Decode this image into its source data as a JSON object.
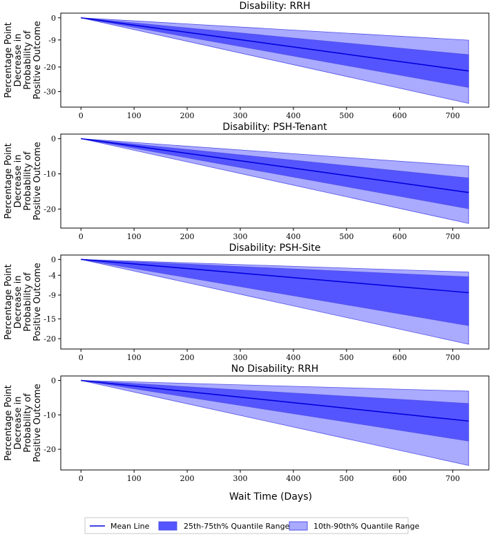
{
  "colors": {
    "mean_line": "#0000dd",
    "band_25_75": "#5555ff",
    "band_10_90": "#aaaaff",
    "band_edge": "#4f4fe6"
  },
  "xlabel": "Wait Time (Days)",
  "ylabel_lines": [
    "Percentage Point",
    "Decrease in",
    "Probability of",
    "Positive Outcome"
  ],
  "legend": {
    "mean": "Mean Line",
    "iqr": "25th-75th% Quantile Range",
    "p10_90": "10th-90th% Quantile Range"
  },
  "chart_data": [
    {
      "type": "line",
      "title": "Disability: RRH",
      "xlabel": "Wait Time (Days)",
      "ylabel": "Percentage Point Decrease in Probability of Positive Outcome",
      "x": [
        0,
        730
      ],
      "xticks": [
        0,
        100,
        200,
        300,
        400,
        500,
        600,
        700
      ],
      "xlim": [
        -38,
        768
      ],
      "ylim": [
        -36.3,
        1.9
      ],
      "yticks": [
        0,
        -9,
        -20,
        -30
      ],
      "ytick_labels": [
        "0",
        "-9",
        "-20",
        "-30"
      ],
      "series": [
        {
          "name": "Mean Line",
          "values": [
            0,
            -21.6
          ]
        },
        {
          "name": "25th percentile",
          "values": [
            0,
            -28.3
          ]
        },
        {
          "name": "75th percentile",
          "values": [
            0,
            -15.0
          ]
        },
        {
          "name": "10th percentile",
          "values": [
            0,
            -34.8
          ]
        },
        {
          "name": "90th percentile",
          "values": [
            0,
            -9.1
          ]
        }
      ]
    },
    {
      "type": "line",
      "title": "Disability: PSH-Tenant",
      "xlabel": "Wait Time (Days)",
      "ylabel": "Percentage Point Decrease in Probability of Positive Outcome",
      "x": [
        0,
        730
      ],
      "xticks": [
        0,
        100,
        200,
        300,
        400,
        500,
        600,
        700
      ],
      "xlim": [
        -38,
        768
      ],
      "ylim": [
        -25.4,
        1.3
      ],
      "yticks": [
        0,
        -10,
        -20
      ],
      "ytick_labels": [
        "0",
        "-10",
        "-20"
      ],
      "series": [
        {
          "name": "Mean Line",
          "values": [
            0,
            -15.3
          ]
        },
        {
          "name": "25th percentile",
          "values": [
            0,
            -19.9
          ]
        },
        {
          "name": "75th percentile",
          "values": [
            0,
            -11.2
          ]
        },
        {
          "name": "10th percentile",
          "values": [
            0,
            -24.1
          ]
        },
        {
          "name": "90th percentile",
          "values": [
            0,
            -7.8
          ]
        }
      ]
    },
    {
      "type": "line",
      "title": "Disability: PSH-Site",
      "xlabel": "Wait Time (Days)",
      "ylabel": "Percentage Point Decrease in Probability of Positive Outcome",
      "x": [
        0,
        730
      ],
      "xticks": [
        0,
        100,
        200,
        300,
        400,
        500,
        600,
        700
      ],
      "xlim": [
        -38,
        768
      ],
      "ylim": [
        -22.6,
        1.1
      ],
      "yticks": [
        0,
        -4,
        -9,
        -15,
        -20
      ],
      "ytick_labels": [
        "0",
        "-4",
        "-9",
        "-15",
        "-20"
      ],
      "series": [
        {
          "name": "Mean Line",
          "values": [
            0,
            -8.4
          ]
        },
        {
          "name": "25th percentile",
          "values": [
            0,
            -16.7
          ]
        },
        {
          "name": "75th percentile",
          "values": [
            0,
            -4.4
          ]
        },
        {
          "name": "10th percentile",
          "values": [
            0,
            -21.4
          ]
        },
        {
          "name": "90th percentile",
          "values": [
            0,
            -3.2
          ]
        }
      ]
    },
    {
      "type": "line",
      "title": "No Disability: RRH",
      "xlabel": "Wait Time (Days)",
      "ylabel": "Percentage Point Decrease in Probability of Positive Outcome",
      "x": [
        0,
        730
      ],
      "xticks": [
        0,
        100,
        200,
        300,
        400,
        500,
        600,
        700
      ],
      "xlim": [
        -38,
        768
      ],
      "ylim": [
        -26.0,
        1.3
      ],
      "yticks": [
        0,
        -10,
        -20
      ],
      "ytick_labels": [
        "0",
        "-10",
        "-20"
      ],
      "series": [
        {
          "name": "Mean Line",
          "values": [
            0,
            -11.8
          ]
        },
        {
          "name": "25th percentile",
          "values": [
            0,
            -17.6
          ]
        },
        {
          "name": "75th percentile",
          "values": [
            0,
            -6.7
          ]
        },
        {
          "name": "10th percentile",
          "values": [
            0,
            -24.7
          ]
        },
        {
          "name": "90th percentile",
          "values": [
            0,
            -3.1
          ]
        }
      ]
    }
  ]
}
